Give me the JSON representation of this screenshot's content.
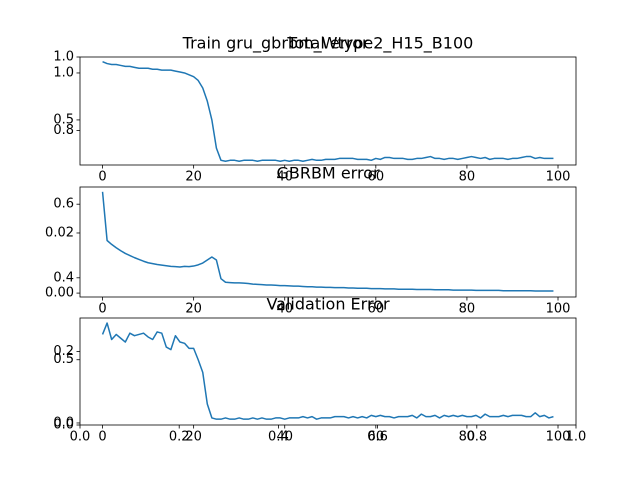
{
  "chart_data": [
    {
      "type": "axes",
      "title": "Train gru_gbrbm_Wtype2_H15_B100",
      "xlim": [
        0,
        1
      ],
      "ylim": [
        0,
        1
      ],
      "xticks": [
        {
          "value": 0,
          "label": "0.0"
        },
        0.2,
        0.4,
        0.6,
        0.8,
        {
          "value": 1,
          "label": "1.0"
        }
      ],
      "yticks": [
        {
          "value": 0,
          "label": "0.0"
        },
        0.2,
        0.4,
        0.6,
        0.8,
        {
          "value": 1,
          "label": "1.0"
        }
      ]
    },
    {
      "type": "line",
      "title": "Total error",
      "color": "#1f77b4",
      "x": [
        0,
        1,
        2,
        3,
        4,
        5,
        6,
        7,
        8,
        9,
        10,
        11,
        12,
        13,
        14,
        15,
        16,
        17,
        18,
        19,
        20,
        21,
        22,
        23,
        24,
        25,
        26,
        27,
        28,
        29,
        30,
        31,
        32,
        33,
        34,
        35,
        36,
        37,
        38,
        39,
        40,
        41,
        42,
        43,
        44,
        45,
        46,
        47,
        48,
        49,
        50,
        51,
        52,
        53,
        54,
        55,
        56,
        57,
        58,
        59,
        60,
        61,
        62,
        63,
        64,
        65,
        66,
        67,
        68,
        69,
        70,
        71,
        72,
        73,
        74,
        75,
        76,
        77,
        78,
        79,
        80,
        81,
        82,
        83,
        84,
        85,
        86,
        87,
        88,
        89,
        90,
        91,
        92,
        93,
        94,
        95,
        96,
        97,
        98,
        99
      ],
      "values": [
        1.12,
        1.1,
        1.09,
        1.09,
        1.08,
        1.07,
        1.07,
        1.06,
        1.05,
        1.05,
        1.05,
        1.04,
        1.04,
        1.03,
        1.03,
        1.03,
        1.02,
        1.01,
        1.0,
        0.98,
        0.96,
        0.92,
        0.84,
        0.7,
        0.5,
        0.2,
        0.07,
        0.06,
        0.07,
        0.07,
        0.06,
        0.07,
        0.07,
        0.07,
        0.06,
        0.07,
        0.07,
        0.07,
        0.07,
        0.06,
        0.07,
        0.06,
        0.07,
        0.07,
        0.06,
        0.07,
        0.08,
        0.07,
        0.07,
        0.08,
        0.08,
        0.08,
        0.09,
        0.09,
        0.09,
        0.09,
        0.08,
        0.08,
        0.08,
        0.07,
        0.09,
        0.08,
        0.1,
        0.1,
        0.09,
        0.09,
        0.09,
        0.08,
        0.08,
        0.09,
        0.09,
        0.1,
        0.11,
        0.09,
        0.09,
        0.08,
        0.09,
        0.09,
        0.08,
        0.09,
        0.1,
        0.11,
        0.1,
        0.09,
        0.1,
        0.08,
        0.09,
        0.09,
        0.09,
        0.08,
        0.09,
        0.09,
        0.1,
        0.11,
        0.11,
        0.09,
        0.1,
        0.09,
        0.09,
        0.09
      ],
      "xlim": [
        -4.95,
        103.95
      ],
      "ylim": [
        0.02,
        1.17
      ],
      "xticks": [
        0,
        20,
        40,
        60,
        80,
        100
      ],
      "yticks": [
        0.5,
        {
          "value": 1,
          "label": "1.0"
        }
      ]
    },
    {
      "type": "line",
      "title": "GBRBM error",
      "color": "#1f77b4",
      "x": [
        0,
        1,
        2,
        3,
        4,
        5,
        6,
        7,
        8,
        9,
        10,
        11,
        12,
        13,
        14,
        15,
        16,
        17,
        18,
        19,
        20,
        21,
        22,
        23,
        24,
        25,
        26,
        27,
        28,
        29,
        30,
        31,
        32,
        33,
        34,
        35,
        36,
        37,
        38,
        39,
        40,
        41,
        42,
        43,
        44,
        45,
        46,
        47,
        48,
        49,
        50,
        51,
        52,
        53,
        54,
        55,
        56,
        57,
        58,
        59,
        60,
        61,
        62,
        63,
        64,
        65,
        66,
        67,
        68,
        69,
        70,
        71,
        72,
        73,
        74,
        75,
        76,
        77,
        78,
        79,
        80,
        81,
        82,
        83,
        84,
        85,
        86,
        87,
        88,
        89,
        90,
        91,
        92,
        93,
        94,
        95,
        96,
        97,
        98,
        99
      ],
      "values": [
        0.0337,
        0.0175,
        0.0162,
        0.0151,
        0.0141,
        0.0132,
        0.0125,
        0.0118,
        0.0112,
        0.0106,
        0.0101,
        0.0098,
        0.0095,
        0.0093,
        0.0091,
        0.0089,
        0.0088,
        0.0087,
        0.0089,
        0.0088,
        0.009,
        0.0094,
        0.01,
        0.011,
        0.012,
        0.011,
        0.0048,
        0.0036,
        0.0035,
        0.0034,
        0.0034,
        0.0033,
        0.0032,
        0.003,
        0.0029,
        0.0028,
        0.0027,
        0.0027,
        0.0026,
        0.0025,
        0.0025,
        0.0024,
        0.0023,
        0.0023,
        0.0022,
        0.0021,
        0.0021,
        0.002,
        0.002,
        0.0019,
        0.0019,
        0.0018,
        0.0018,
        0.0018,
        0.0017,
        0.0017,
        0.0016,
        0.0016,
        0.0016,
        0.0015,
        0.0015,
        0.0015,
        0.0014,
        0.0014,
        0.0014,
        0.0013,
        0.0013,
        0.0013,
        0.0013,
        0.0012,
        0.0012,
        0.0012,
        0.0012,
        0.0011,
        0.0011,
        0.0011,
        0.0011,
        0.001,
        0.001,
        0.001,
        0.001,
        0.001,
        0.0009,
        0.0009,
        0.0009,
        0.0009,
        0.0009,
        0.0009,
        0.0008,
        0.0008,
        0.0008,
        0.0008,
        0.0008,
        0.0008,
        0.0008,
        0.0007,
        0.0007,
        0.0007,
        0.0007,
        0.0007
      ],
      "xlim": [
        -4.95,
        103.95
      ],
      "ylim": [
        -0.0013,
        0.0353
      ],
      "xticks": [
        0,
        20,
        40,
        60,
        80,
        100
      ],
      "yticks": [
        {
          "value": 0,
          "label": "0.00"
        },
        0.02
      ]
    },
    {
      "type": "line",
      "title": "Validation Error",
      "color": "#1f77b4",
      "x": [
        0,
        1,
        2,
        3,
        4,
        5,
        6,
        7,
        8,
        9,
        10,
        11,
        12,
        13,
        14,
        15,
        16,
        17,
        18,
        19,
        20,
        21,
        22,
        23,
        24,
        25,
        26,
        27,
        28,
        29,
        30,
        31,
        32,
        33,
        34,
        35,
        36,
        37,
        38,
        39,
        40,
        41,
        42,
        43,
        44,
        45,
        46,
        47,
        48,
        49,
        50,
        51,
        52,
        53,
        54,
        55,
        56,
        57,
        58,
        59,
        60,
        61,
        62,
        63,
        64,
        65,
        66,
        67,
        68,
        69,
        70,
        71,
        72,
        73,
        74,
        75,
        76,
        77,
        78,
        79,
        80,
        81,
        82,
        83,
        84,
        85,
        86,
        87,
        88,
        89,
        90,
        91,
        92,
        93,
        94,
        95,
        96,
        97,
        98,
        99
      ],
      "values": [
        0.7,
        0.79,
        0.66,
        0.7,
        0.67,
        0.64,
        0.71,
        0.69,
        0.7,
        0.71,
        0.68,
        0.66,
        0.72,
        0.71,
        0.6,
        0.58,
        0.69,
        0.64,
        0.63,
        0.59,
        0.59,
        0.5,
        0.4,
        0.15,
        0.04,
        0.03,
        0.03,
        0.04,
        0.03,
        0.03,
        0.04,
        0.03,
        0.03,
        0.04,
        0.03,
        0.04,
        0.03,
        0.03,
        0.04,
        0.04,
        0.03,
        0.04,
        0.04,
        0.04,
        0.05,
        0.04,
        0.05,
        0.03,
        0.04,
        0.04,
        0.04,
        0.05,
        0.05,
        0.05,
        0.04,
        0.05,
        0.04,
        0.05,
        0.04,
        0.06,
        0.05,
        0.06,
        0.05,
        0.05,
        0.04,
        0.05,
        0.05,
        0.05,
        0.06,
        0.04,
        0.07,
        0.05,
        0.05,
        0.06,
        0.04,
        0.06,
        0.05,
        0.06,
        0.05,
        0.06,
        0.05,
        0.05,
        0.06,
        0.04,
        0.07,
        0.05,
        0.05,
        0.05,
        0.06,
        0.05,
        0.06,
        0.06,
        0.06,
        0.05,
        0.05,
        0.08,
        0.05,
        0.06,
        0.04,
        0.05
      ],
      "xlim": [
        -4.95,
        103.95
      ],
      "ylim": [
        -0.016,
        0.83
      ],
      "xticks": [
        0,
        20,
        40,
        60,
        80,
        100
      ],
      "yticks": [
        {
          "value": 0,
          "label": "0.0"
        },
        0.5
      ]
    }
  ]
}
